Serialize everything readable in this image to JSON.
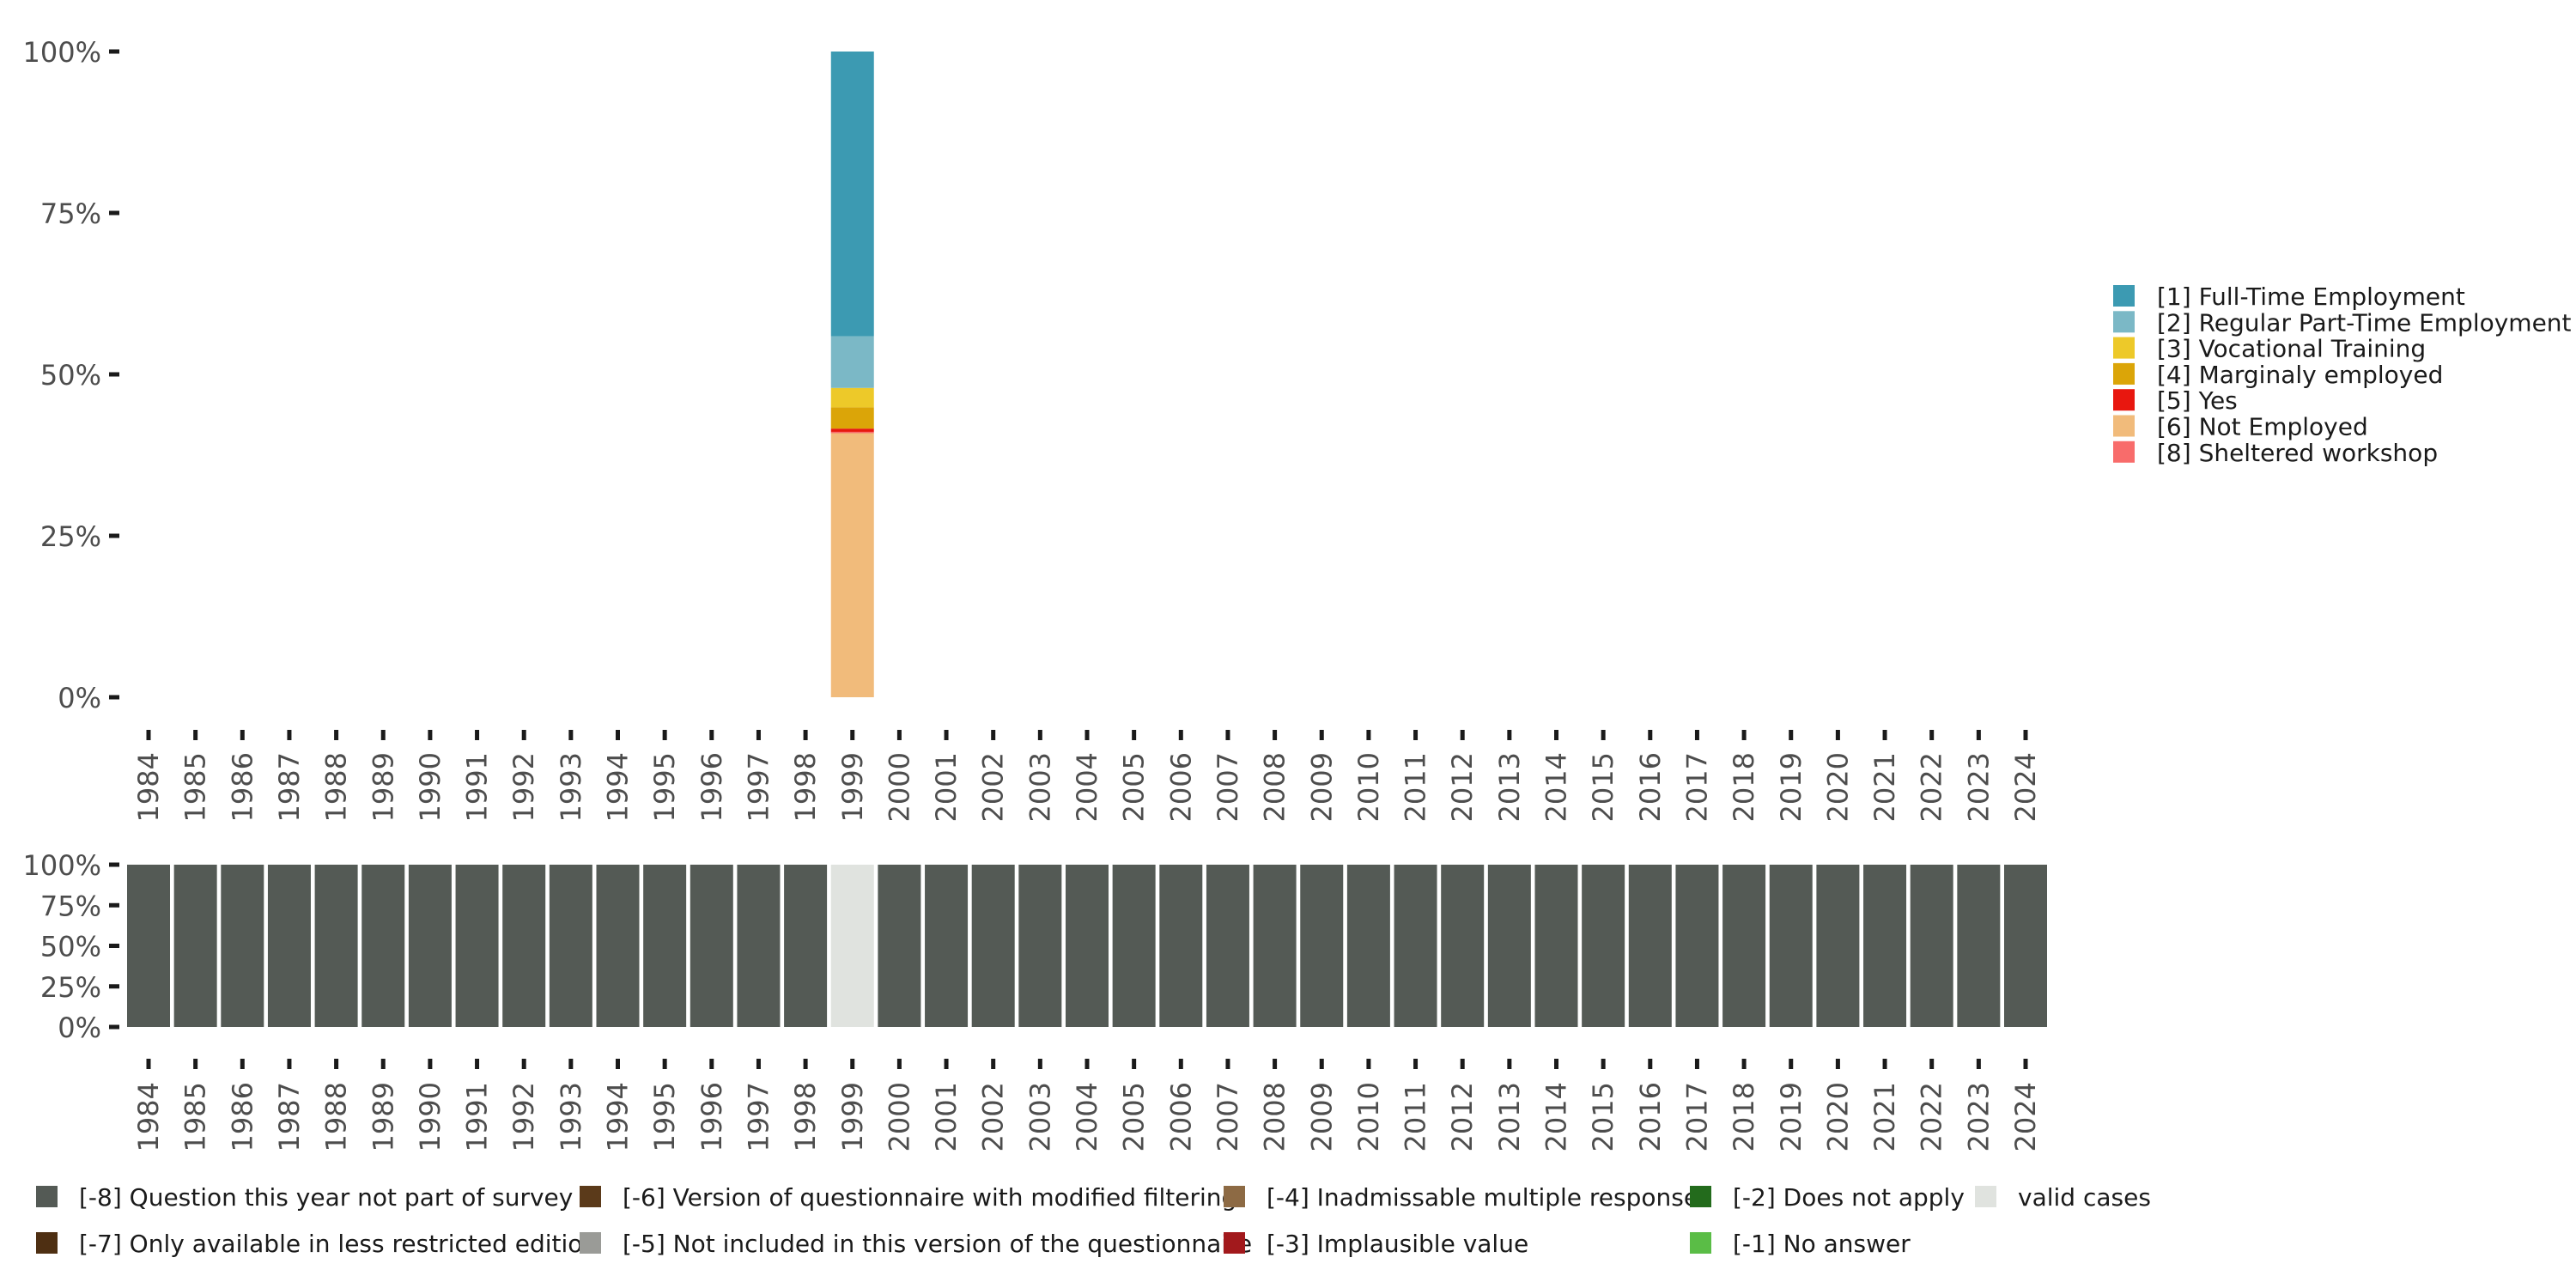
{
  "chart_data": [
    {
      "type": "bar",
      "stacked": true,
      "percent": true,
      "x": [
        "1984",
        "1985",
        "1986",
        "1987",
        "1988",
        "1989",
        "1990",
        "1991",
        "1992",
        "1993",
        "1994",
        "1995",
        "1996",
        "1997",
        "1998",
        "1999",
        "2000",
        "2001",
        "2002",
        "2003",
        "2004",
        "2005",
        "2006",
        "2007",
        "2008",
        "2009",
        "2010",
        "2011",
        "2012",
        "2013",
        "2014",
        "2015",
        "2016",
        "2017",
        "2018",
        "2019",
        "2020",
        "2021",
        "2022",
        "2023",
        "2024"
      ],
      "y_ticks": [
        "0%",
        "25%",
        "50%",
        "75%",
        "100%"
      ],
      "ylim": [
        0,
        100
      ],
      "legend_position": "right",
      "series": [
        {
          "name": "[6] Not Employed",
          "color": "#f1bb7b",
          "values": {
            "1999": 41.0
          }
        },
        {
          "name": "[8] Sheltered workshop",
          "color": "#f86c6b",
          "values": {
            "1999": 0.1
          }
        },
        {
          "name": "[5] Yes",
          "color": "#e8170f",
          "values": {
            "1999": 0.5
          }
        },
        {
          "name": "[4] Marginaly employed",
          "color": "#dba508",
          "values": {
            "1999": 3.3
          }
        },
        {
          "name": "[3] Vocational Training",
          "color": "#edc929",
          "values": {
            "1999": 3.0
          }
        },
        {
          "name": "[2] Regular Part-Time Employment",
          "color": "#7bb8c6",
          "values": {
            "1999": 8.0
          }
        },
        {
          "name": "[1] Full-Time Employment",
          "color": "#3c9ab2",
          "values": {
            "1999": 44.1
          }
        }
      ],
      "legend_order": [
        "[1] Full-Time Employment",
        "[2] Regular Part-Time Employment",
        "[3] Vocational Training",
        "[4] Marginaly employed",
        "[5] Yes",
        "[6] Not Employed",
        "[8] Sheltered workshop"
      ]
    },
    {
      "type": "bar",
      "stacked": true,
      "percent": true,
      "x": [
        "1984",
        "1985",
        "1986",
        "1987",
        "1988",
        "1989",
        "1990",
        "1991",
        "1992",
        "1993",
        "1994",
        "1995",
        "1996",
        "1997",
        "1998",
        "1999",
        "2000",
        "2001",
        "2002",
        "2003",
        "2004",
        "2005",
        "2006",
        "2007",
        "2008",
        "2009",
        "2010",
        "2011",
        "2012",
        "2013",
        "2014",
        "2015",
        "2016",
        "2017",
        "2018",
        "2019",
        "2020",
        "2021",
        "2022",
        "2023",
        "2024"
      ],
      "y_ticks": [
        "0%",
        "25%",
        "50%",
        "75%",
        "100%"
      ],
      "ylim": [
        0,
        100
      ],
      "legend_position": "bottom",
      "bars": {
        "1984": "[-8] Question this year not part of survey",
        "1985": "[-8] Question this year not part of survey",
        "1986": "[-8] Question this year not part of survey",
        "1987": "[-8] Question this year not part of survey",
        "1988": "[-8] Question this year not part of survey",
        "1989": "[-8] Question this year not part of survey",
        "1990": "[-8] Question this year not part of survey",
        "1991": "[-8] Question this year not part of survey",
        "1992": "[-8] Question this year not part of survey",
        "1993": "[-8] Question this year not part of survey",
        "1994": "[-8] Question this year not part of survey",
        "1995": "[-8] Question this year not part of survey",
        "1996": "[-8] Question this year not part of survey",
        "1997": "[-8] Question this year not part of survey",
        "1998": "[-8] Question this year not part of survey",
        "1999": "valid cases",
        "2000": "[-8] Question this year not part of survey",
        "2001": "[-8] Question this year not part of survey",
        "2002": "[-8] Question this year not part of survey",
        "2003": "[-8] Question this year not part of survey",
        "2004": "[-8] Question this year not part of survey",
        "2005": "[-8] Question this year not part of survey",
        "2006": "[-8] Question this year not part of survey",
        "2007": "[-8] Question this year not part of survey",
        "2008": "[-8] Question this year not part of survey",
        "2009": "[-8] Question this year not part of survey",
        "2010": "[-8] Question this year not part of survey",
        "2011": "[-8] Question this year not part of survey",
        "2012": "[-8] Question this year not part of survey",
        "2013": "[-8] Question this year not part of survey",
        "2014": "[-8] Question this year not part of survey",
        "2015": "[-8] Question this year not part of survey",
        "2016": "[-8] Question this year not part of survey",
        "2017": "[-8] Question this year not part of survey",
        "2018": "[-8] Question this year not part of survey",
        "2019": "[-8] Question this year not part of survey",
        "2020": "[-8] Question this year not part of survey",
        "2021": "[-8] Question this year not part of survey",
        "2022": "[-8] Question this year not part of survey",
        "2023": "[-8] Question this year not part of survey",
        "2024": "[-8] Question this year not part of survey"
      },
      "legend": [
        {
          "name": "[-8] Question this year not part of survey",
          "color": "#545a55"
        },
        {
          "name": "[-7] Only available in less restricted edition",
          "color": "#4e2f12"
        },
        {
          "name": "[-6] Version of questionnaire with modified filtering",
          "color": "#5b3a1a"
        },
        {
          "name": "[-5] Not included in this version of the questionnaire",
          "color": "#9a9b97"
        },
        {
          "name": "[-4] Inadmissable multiple response",
          "color": "#8d6a44"
        },
        {
          "name": "[-3] Implausible value",
          "color": "#a2191c"
        },
        {
          "name": "[-2] Does not apply",
          "color": "#236b1c"
        },
        {
          "name": "[-1] No answer",
          "color": "#5abd46"
        },
        {
          "name": "valid cases",
          "color": "#e0e3df"
        }
      ]
    }
  ]
}
